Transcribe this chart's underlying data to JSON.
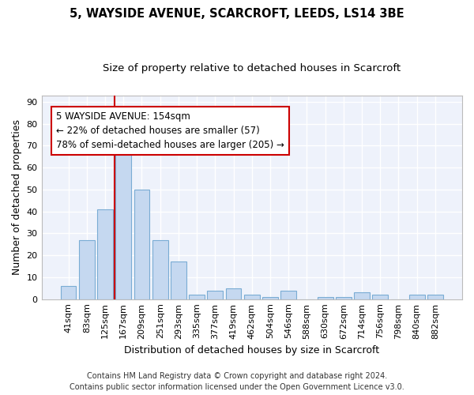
{
  "title": "5, WAYSIDE AVENUE, SCARCROFT, LEEDS, LS14 3BE",
  "subtitle": "Size of property relative to detached houses in Scarcroft",
  "xlabel": "Distribution of detached houses by size in Scarcroft",
  "ylabel": "Number of detached properties",
  "categories": [
    "41sqm",
    "83sqm",
    "125sqm",
    "167sqm",
    "209sqm",
    "251sqm",
    "293sqm",
    "335sqm",
    "377sqm",
    "419sqm",
    "462sqm",
    "504sqm",
    "546sqm",
    "588sqm",
    "630sqm",
    "672sqm",
    "714sqm",
    "756sqm",
    "798sqm",
    "840sqm",
    "882sqm"
  ],
  "values": [
    6,
    27,
    41,
    69,
    50,
    27,
    17,
    2,
    4,
    5,
    2,
    1,
    4,
    0,
    1,
    1,
    3,
    2,
    0,
    2,
    2
  ],
  "bar_color": "#c5d8f0",
  "bar_edge_color": "#7aacd4",
  "vline_color": "#cc0000",
  "vline_x_index": 2.5,
  "annotation_text": "5 WAYSIDE AVENUE: 154sqm\n← 22% of detached houses are smaller (57)\n78% of semi-detached houses are larger (205) →",
  "annotation_box_color": "white",
  "annotation_box_edge_color": "#cc0000",
  "ylim": [
    0,
    93
  ],
  "yticks": [
    0,
    10,
    20,
    30,
    40,
    50,
    60,
    70,
    80,
    90
  ],
  "footer_line1": "Contains HM Land Registry data © Crown copyright and database right 2024.",
  "footer_line2": "Contains public sector information licensed under the Open Government Licence v3.0.",
  "background_color": "#eef2fb",
  "grid_color": "#ffffff",
  "title_fontsize": 10.5,
  "subtitle_fontsize": 9.5,
  "axis_label_fontsize": 9,
  "tick_fontsize": 8,
  "annotation_fontsize": 8.5,
  "footer_fontsize": 7
}
